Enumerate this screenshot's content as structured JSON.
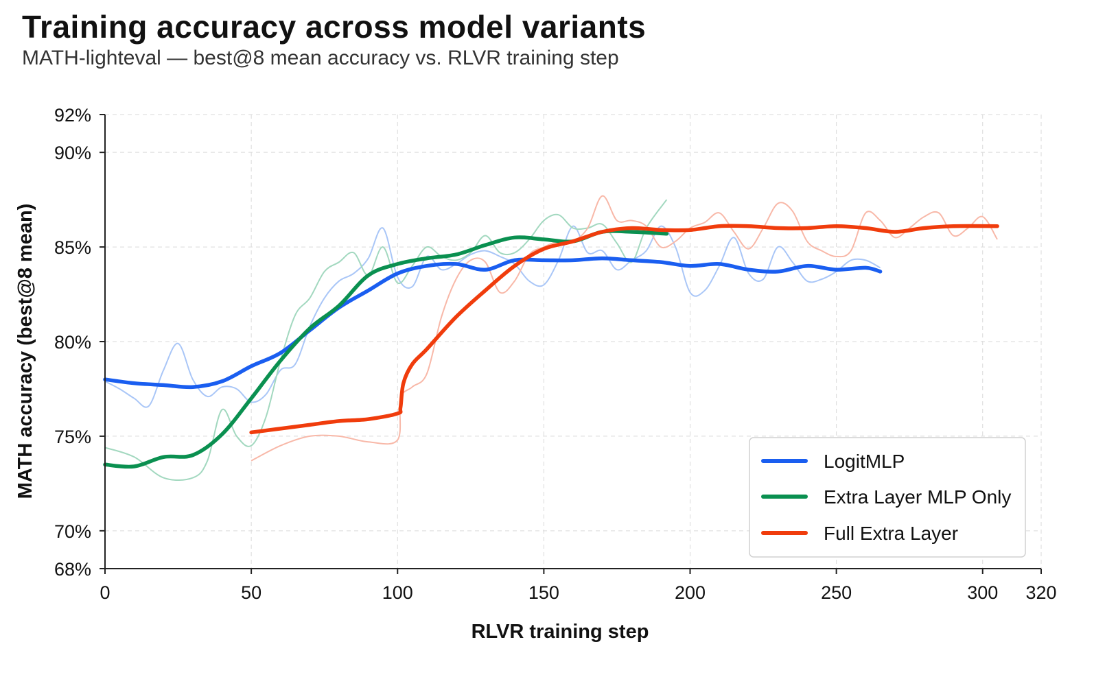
{
  "chart_data": {
    "type": "line",
    "title": "Training accuracy across model variants",
    "subtitle": "MATH-lighteval — best@8 mean accuracy vs. RLVR training step",
    "xlabel": "RLVR training step",
    "ylabel": "MATH accuracy (best@8 mean)",
    "xlim": [
      0,
      320
    ],
    "ylim": [
      68,
      92
    ],
    "xticks": [
      0,
      50,
      100,
      150,
      200,
      250,
      300,
      320
    ],
    "xtick_labels": [
      "0",
      "50",
      "100",
      "150",
      "200",
      "250",
      "300",
      "320"
    ],
    "yticks": [
      68,
      70,
      75,
      80,
      85,
      90,
      92
    ],
    "ytick_labels": [
      "68%",
      "70%",
      "75%",
      "80%",
      "85%",
      "90%",
      "92%"
    ],
    "grid": true,
    "legend_position": "lower-right",
    "series": [
      {
        "name": "LogitMLP",
        "color": "#1a5ef0",
        "raw_color": "#a9c6f7",
        "smoothed": {
          "x": [
            0,
            10,
            20,
            30,
            40,
            50,
            60,
            70,
            80,
            90,
            100,
            110,
            120,
            130,
            140,
            150,
            160,
            170,
            180,
            190,
            200,
            210,
            220,
            230,
            240,
            250,
            260,
            265
          ],
          "y": [
            78.0,
            77.8,
            77.7,
            77.6,
            77.9,
            78.7,
            79.4,
            80.6,
            81.8,
            82.7,
            83.6,
            84.0,
            84.1,
            83.8,
            84.3,
            84.3,
            84.3,
            84.4,
            84.3,
            84.2,
            84.0,
            84.1,
            83.8,
            83.7,
            84.0,
            83.8,
            83.9,
            83.7
          ]
        },
        "raw": {
          "x": [
            0,
            5,
            10,
            15,
            20,
            25,
            30,
            35,
            40,
            45,
            50,
            55,
            60,
            65,
            70,
            75,
            80,
            85,
            90,
            95,
            100,
            105,
            110,
            115,
            120,
            125,
            130,
            135,
            140,
            145,
            150,
            155,
            160,
            165,
            170,
            175,
            180,
            185,
            190,
            195,
            200,
            205,
            210,
            215,
            220,
            225,
            230,
            235,
            240,
            245,
            250,
            255,
            260,
            265
          ],
          "y": [
            77.9,
            77.5,
            77.0,
            76.6,
            78.5,
            79.9,
            78.0,
            77.1,
            77.6,
            77.5,
            76.8,
            77.2,
            78.5,
            78.8,
            80.8,
            82.3,
            83.2,
            83.6,
            84.4,
            86.0,
            83.4,
            82.9,
            84.5,
            83.8,
            84.1,
            84.6,
            84.8,
            84.5,
            84.1,
            83.2,
            83.0,
            84.3,
            86.1,
            84.7,
            84.8,
            83.8,
            84.3,
            84.8,
            86.1,
            85.0,
            82.6,
            82.7,
            84.0,
            85.5,
            83.6,
            83.3,
            85.0,
            84.2,
            83.2,
            83.3,
            83.7,
            84.3,
            84.3,
            83.9
          ]
        }
      },
      {
        "name": "Extra Layer MLP Only",
        "color": "#0a9050",
        "raw_color": "#a2d8bf",
        "smoothed": {
          "x": [
            0,
            10,
            20,
            30,
            40,
            50,
            60,
            70,
            80,
            90,
            100,
            110,
            120,
            130,
            140,
            150,
            160,
            170,
            180,
            192
          ],
          "y": [
            73.5,
            73.4,
            73.9,
            74.0,
            75.1,
            77.0,
            79.0,
            80.7,
            81.9,
            83.5,
            84.1,
            84.4,
            84.6,
            85.1,
            85.5,
            85.4,
            85.3,
            85.8,
            85.8,
            85.7
          ]
        },
        "raw": {
          "x": [
            0,
            10,
            20,
            30,
            35,
            40,
            45,
            50,
            55,
            60,
            65,
            70,
            75,
            80,
            85,
            90,
            95,
            100,
            105,
            110,
            115,
            120,
            125,
            130,
            135,
            140,
            145,
            150,
            155,
            160,
            165,
            170,
            175,
            180,
            185,
            192
          ],
          "y": [
            74.4,
            73.9,
            72.8,
            72.8,
            73.7,
            76.4,
            75.0,
            74.5,
            76.0,
            79.0,
            81.4,
            82.3,
            83.7,
            84.2,
            84.7,
            83.5,
            85.0,
            83.1,
            84.0,
            85.0,
            84.5,
            84.3,
            84.7,
            85.6,
            84.7,
            84.7,
            85.4,
            86.4,
            86.7,
            86.0,
            86.0,
            86.2,
            85.2,
            84.2,
            86.0,
            87.5
          ]
        }
      },
      {
        "name": "Full Extra Layer",
        "color": "#f03c0c",
        "raw_color": "#f8b8a8",
        "smoothed": {
          "x": [
            50,
            60,
            70,
            80,
            90,
            100,
            101,
            102,
            105,
            110,
            120,
            130,
            140,
            150,
            160,
            170,
            180,
            190,
            200,
            210,
            220,
            230,
            240,
            250,
            260,
            270,
            280,
            290,
            305
          ],
          "y": [
            75.2,
            75.4,
            75.6,
            75.8,
            75.9,
            76.2,
            76.5,
            77.8,
            78.8,
            79.6,
            81.3,
            82.7,
            84.0,
            84.9,
            85.3,
            85.8,
            86.0,
            85.9,
            85.9,
            86.1,
            86.1,
            86.0,
            86.0,
            86.1,
            86.0,
            85.8,
            86.0,
            86.1,
            86.1
          ]
        },
        "raw": {
          "x": [
            50,
            60,
            70,
            80,
            90,
            100,
            101,
            105,
            110,
            115,
            120,
            125,
            130,
            135,
            140,
            145,
            150,
            155,
            160,
            165,
            170,
            175,
            180,
            185,
            190,
            195,
            200,
            205,
            210,
            215,
            220,
            225,
            230,
            235,
            240,
            245,
            250,
            255,
            260,
            265,
            270,
            275,
            280,
            285,
            290,
            295,
            300,
            305
          ],
          "y": [
            73.7,
            74.5,
            75.0,
            75.0,
            74.7,
            74.8,
            77.0,
            77.6,
            78.3,
            81.3,
            83.3,
            84.3,
            84.2,
            82.6,
            83.2,
            84.6,
            85.0,
            85.3,
            85.3,
            86.0,
            87.7,
            86.4,
            86.4,
            86.1,
            85.0,
            85.3,
            86.0,
            86.3,
            86.8,
            85.8,
            84.9,
            86.0,
            87.3,
            86.9,
            85.3,
            84.8,
            84.5,
            84.8,
            86.8,
            86.4,
            85.5,
            86.0,
            86.6,
            86.8,
            85.6,
            86.0,
            86.6,
            85.4
          ]
        }
      }
    ]
  }
}
